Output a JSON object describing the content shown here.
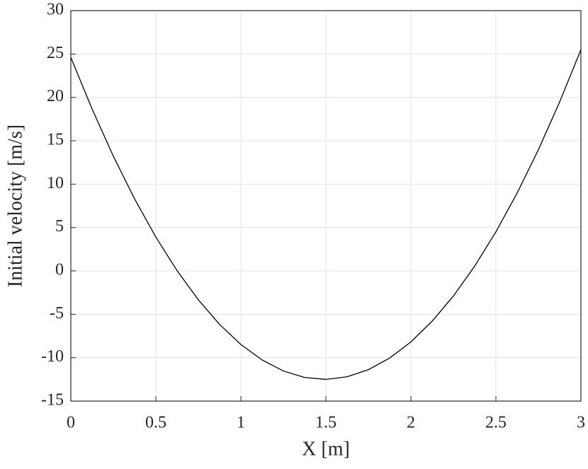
{
  "chart_data": {
    "type": "line",
    "x_label": "X [m]",
    "y_label": "Initial velocity [m/s]",
    "x": [
      0,
      0.125,
      0.25,
      0.375,
      0.5,
      0.625,
      0.75,
      0.875,
      1,
      1.125,
      1.25,
      1.375,
      1.5,
      1.625,
      1.75,
      1.875,
      2,
      2.125,
      2.25,
      2.375,
      2.5,
      2.625,
      2.75,
      2.875,
      3
    ],
    "series": [
      {
        "color": "#000000",
        "values": [
          24.6,
          18.66,
          13.22,
          8.3,
          3.9,
          0.03,
          -3.33,
          -6.17,
          -8.48,
          -10.26,
          -11.53,
          -12.28,
          -12.5,
          -12.2,
          -11.38,
          -10.04,
          -8.18,
          -5.79,
          -2.89,
          0.55,
          4.5,
          8.98,
          13.97,
          19.48,
          25.5
        ]
      }
    ],
    "xlim": [
      0,
      3
    ],
    "xticks": [
      0,
      0.5,
      1,
      1.5,
      2,
      2.5,
      3
    ],
    "ylim": [
      -15,
      30
    ],
    "yticks": [
      -15,
      -10,
      -5,
      0,
      5,
      10,
      15,
      20,
      25,
      30
    ],
    "grid": true
  }
}
